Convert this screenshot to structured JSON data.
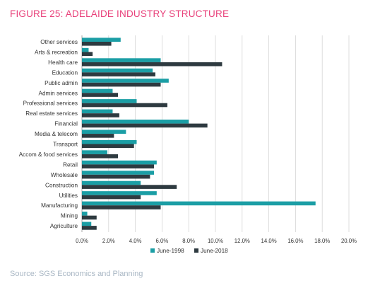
{
  "figure_title": "FIGURE 25: ADELAIDE INDUSTRY STRUCTURE",
  "source": "Source: SGS Economics and Planning",
  "colors": {
    "june_1998": "#1b9ea5",
    "june_2018": "#2e3a40",
    "title": "#e8407a",
    "gridline": "#d6d6d6"
  },
  "chart_data": {
    "type": "bar",
    "orientation": "horizontal",
    "title": "",
    "xlabel": "",
    "ylabel": "",
    "categories": [
      "Other services",
      "Arts & recreation",
      "Health care",
      "Education",
      "Public admin",
      "Admin services",
      "Professional services",
      "Real estate services",
      "Financial",
      "Media & telecom",
      "Transport",
      "Accom & food services",
      "Retail",
      "Wholesale",
      "Construction",
      "Utilities",
      "Manufacturing",
      "Mining",
      "Agriculture"
    ],
    "series": [
      {
        "name": "June-1998",
        "values": [
          2.9,
          0.5,
          5.9,
          5.3,
          6.5,
          2.3,
          4.1,
          2.3,
          8.0,
          3.3,
          4.1,
          1.9,
          5.6,
          5.4,
          4.4,
          5.6,
          17.5,
          0.4,
          0.7
        ]
      },
      {
        "name": "June-2018",
        "values": [
          2.2,
          0.8,
          10.5,
          5.5,
          5.9,
          2.7,
          6.4,
          2.8,
          9.4,
          2.4,
          3.9,
          2.7,
          5.4,
          5.1,
          7.1,
          4.4,
          5.9,
          1.1,
          1.1
        ]
      }
    ],
    "xlim": [
      0,
      20
    ],
    "xticks": [
      "0.0%",
      "2.0%",
      "4.0%",
      "6.0%",
      "8.0%",
      "10.0%",
      "12.0%",
      "14.0%",
      "16.0%",
      "18.0%",
      "20.0%"
    ],
    "grid": true,
    "legend_position": "bottom"
  }
}
